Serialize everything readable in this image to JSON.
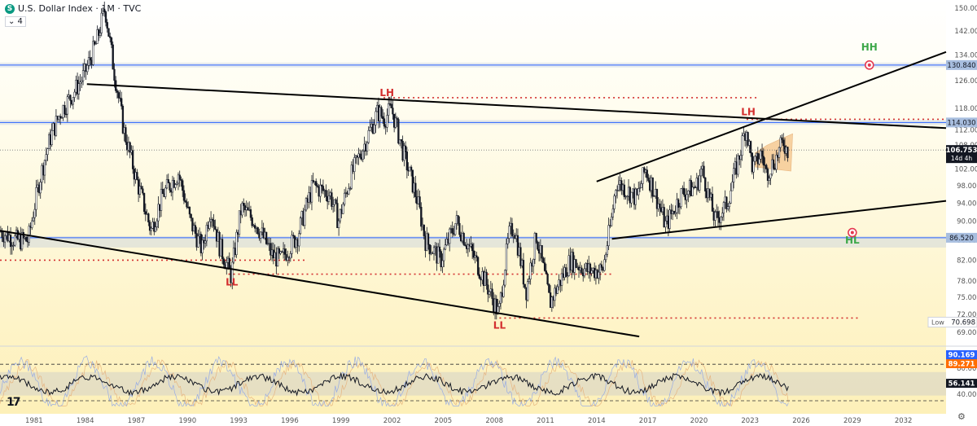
{
  "header": {
    "symbol_icon": "S",
    "title": "U.S. Dollar Index · 1M · TVC",
    "sub_label": "⌄ 4"
  },
  "chart_data": {
    "type": "candlestick-line",
    "x_axis": {
      "range": [
        1979,
        2034.5
      ],
      "tick_labels": [
        "1981",
        "1984",
        "1987",
        "1990",
        "1993",
        "1996",
        "1999",
        "2002",
        "2005",
        "2008",
        "2011",
        "2014",
        "2017",
        "2020",
        "2023",
        "2026",
        "2029",
        "2032"
      ],
      "tick_values": [
        1981,
        1984,
        1987,
        1990,
        1993,
        1996,
        1999,
        2002,
        2005,
        2008,
        2011,
        2014,
        2017,
        2020,
        2023,
        2026,
        2029,
        2032
      ]
    },
    "y_axis": {
      "scale": "log",
      "range": [
        67,
        152
      ],
      "tick_values": [
        69,
        72,
        75,
        78,
        82,
        86,
        90,
        94,
        98,
        102,
        108,
        112,
        118,
        126,
        134,
        142,
        150
      ],
      "tick_labels": [
        "69.000",
        "72.000",
        "75.000",
        "78.000",
        "82.000",
        "86.000",
        "90.000",
        "94.000",
        "98.000",
        "102.000",
        "108.000",
        "112.000",
        "118.000",
        "126.000",
        "134.000",
        "142.000",
        "150.000"
      ]
    },
    "price_path": [
      [
        1979.0,
        88
      ],
      [
        1980.0,
        86
      ],
      [
        1980.7,
        86
      ],
      [
        1981.4,
        100
      ],
      [
        1982.0,
        110
      ],
      [
        1982.6,
        117
      ],
      [
        1983.3,
        122
      ],
      [
        1984.0,
        128
      ],
      [
        1984.7,
        138
      ],
      [
        1985.2,
        150
      ],
      [
        1985.7,
        130
      ],
      [
        1986.3,
        112
      ],
      [
        1987.0,
        100
      ],
      [
        1987.9,
        88
      ],
      [
        1988.6,
        96
      ],
      [
        1989.5,
        101
      ],
      [
        1990.2,
        90
      ],
      [
        1990.9,
        84
      ],
      [
        1991.4,
        93
      ],
      [
        1991.9,
        85
      ],
      [
        1992.6,
        79
      ],
      [
        1993.2,
        93
      ],
      [
        1994.0,
        90
      ],
      [
        1995.0,
        83
      ],
      [
        1995.5,
        82
      ],
      [
        1996.5,
        87
      ],
      [
        1997.4,
        98
      ],
      [
        1998.4,
        96
      ],
      [
        1998.9,
        90
      ],
      [
        1999.6,
        100
      ],
      [
        2000.4,
        108
      ],
      [
        2001.2,
        117
      ],
      [
        2001.6,
        115
      ],
      [
        2002.0,
        118
      ],
      [
        2002.7,
        106
      ],
      [
        2003.5,
        95
      ],
      [
        2004.0,
        86
      ],
      [
        2004.9,
        82
      ],
      [
        2005.8,
        90
      ],
      [
        2006.5,
        85
      ],
      [
        2007.5,
        78
      ],
      [
        2008.3,
        72
      ],
      [
        2008.9,
        87
      ],
      [
        2009.2,
        89
      ],
      [
        2009.9,
        76
      ],
      [
        2010.5,
        87
      ],
      [
        2011.3,
        74
      ],
      [
        2012.5,
        82
      ],
      [
        2013.5,
        80
      ],
      [
        2014.4,
        80
      ],
      [
        2014.9,
        90
      ],
      [
        2015.2,
        99
      ],
      [
        2016.4,
        95
      ],
      [
        2016.9,
        102
      ],
      [
        2017.4,
        97
      ],
      [
        2018.1,
        89
      ],
      [
        2019.0,
        96
      ],
      [
        2019.9,
        98
      ],
      [
        2020.2,
        102
      ],
      [
        2021.0,
        90
      ],
      [
        2021.7,
        94
      ],
      [
        2022.4,
        105
      ],
      [
        2022.8,
        113
      ],
      [
        2023.2,
        102
      ],
      [
        2023.7,
        106
      ],
      [
        2024.0,
        101
      ],
      [
        2024.6,
        105
      ],
      [
        2025.0,
        109
      ],
      [
        2025.2,
        106.753
      ]
    ],
    "current_price": 106.753,
    "current_countdown": "14d 4h",
    "all_time_low_label": "Low",
    "all_time_low_value": 70.698,
    "horizontal_levels": [
      {
        "price": 130.84,
        "label": "130.840",
        "style": "blue"
      },
      {
        "price": 114.03,
        "label": "114.030",
        "style": "blue"
      },
      {
        "price": 86.52,
        "label": "86.520",
        "style": "blue"
      }
    ],
    "dotted_levels": [
      {
        "price": 121.0,
        "from": 2001.5,
        "to": 2023.5
      },
      {
        "price": 114.9,
        "from": 2022.8,
        "to": 2034.5
      },
      {
        "price": 82.0,
        "from": 1979.0,
        "to": 1997.0
      },
      {
        "price": 79.3,
        "from": 1992.4,
        "to": 2015.0
      },
      {
        "price": 71.4,
        "from": 2008.3,
        "to": 2029.5
      }
    ],
    "trendlines": [
      {
        "from": [
          1984.1,
          125
        ],
        "to": [
          2034.5,
          112.5
        ]
      },
      {
        "from": [
          1979.0,
          88
        ],
        "to": [
          2016.5,
          68.3
        ]
      },
      {
        "from": [
          2014.0,
          99
        ],
        "to": [
          2034.5,
          135
        ]
      },
      {
        "from": [
          2014.9,
          86.3
        ],
        "to": [
          2034.5,
          94.5
        ]
      }
    ],
    "flag_zone": {
      "x": [
        2023.3,
        2024.0,
        2025.0,
        2025.5,
        2025.4,
        2023.3
      ],
      "y": [
        106,
        108,
        110,
        111,
        101.5,
        102.5
      ]
    },
    "annotations": [
      {
        "text": "LH",
        "x": 2001.7,
        "y": 121.5,
        "color": "#d32f2f"
      },
      {
        "text": "LH",
        "x": 2022.9,
        "y": 116,
        "color": "#d32f2f"
      },
      {
        "text": "LL",
        "x": 1992.6,
        "y": 77.2,
        "color": "#d32f2f"
      },
      {
        "text": "LL",
        "x": 2008.3,
        "y": 69.6,
        "color": "#d32f2f"
      },
      {
        "text": "HH",
        "x": 2030.0,
        "y": 135.5,
        "color": "#3da84a"
      },
      {
        "text": "HL",
        "x": 2029.0,
        "y": 85.3,
        "color": "#3da84a"
      }
    ],
    "targets": [
      {
        "x": 2030.0,
        "y": 130.84
      },
      {
        "x": 2029.0,
        "y": 87.6
      }
    ],
    "oscillator": {
      "range": [
        20,
        110
      ],
      "levels": [
        {
          "value": 90.169,
          "label": "90.169",
          "color": "#2962ff"
        },
        {
          "value": 89.271,
          "label": "89.271",
          "color": "#ff6d00"
        },
        {
          "value": 56.141,
          "label": "56.141",
          "color": "#131722"
        }
      ],
      "tick_values": [
        40,
        80
      ],
      "tick_labels": [
        "40.000",
        "80.000"
      ],
      "band": [
        38,
        74
      ],
      "upper_dash": 86,
      "lower_dash": 30
    }
  },
  "colors": {
    "background_top": "#ffffff",
    "background_bottom": "#fdf0b8",
    "candle": "#131722",
    "level_blue": "#2962ff",
    "dotted_red": "#d32f2f"
  }
}
